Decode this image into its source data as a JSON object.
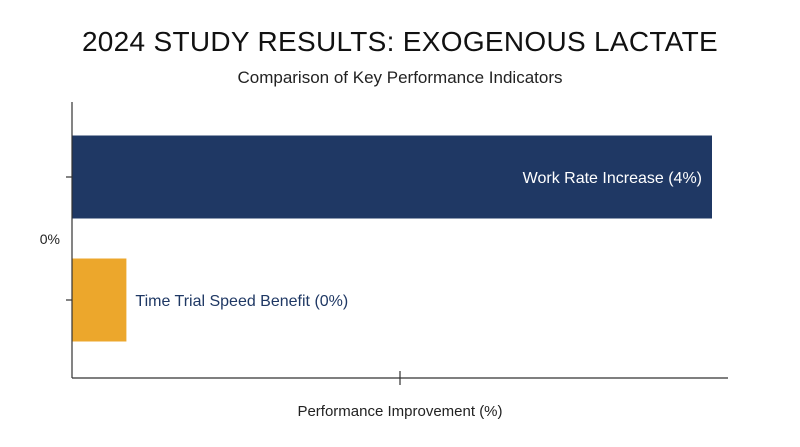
{
  "chart_data": {
    "type": "bar",
    "orientation": "horizontal",
    "title": "2024 STUDY RESULTS: EXOGENOUS LACTATE",
    "subtitle": "Comparison of Key Performance Indicators",
    "xlabel": "Performance Improvement (%)",
    "ylabel": "",
    "xlim": [
      0,
      4.1
    ],
    "y_tick_label": "0%",
    "grid": false,
    "categories": [
      "Work Rate Increase",
      "Time Trial Speed Benefit"
    ],
    "values": [
      4,
      0.34
    ],
    "labels": [
      "Work Rate Increase (4%)",
      "Time Trial Speed Benefit (0%)"
    ],
    "colors": [
      "#1f3864",
      "#eca72c"
    ],
    "label_colors": [
      "#ffffff",
      "#1f3864"
    ]
  }
}
